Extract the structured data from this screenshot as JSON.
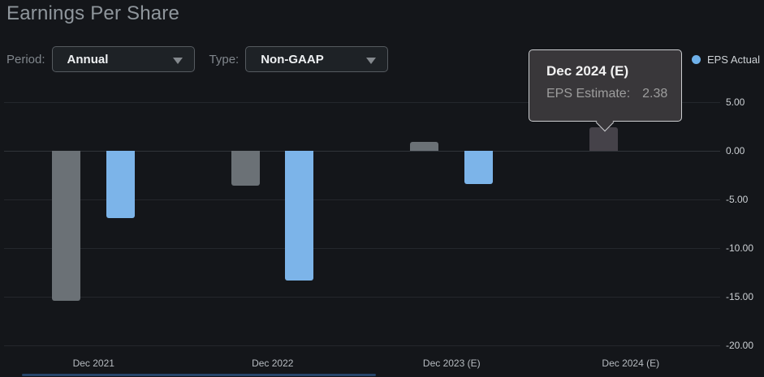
{
  "header": {
    "title": "Earnings Per Share"
  },
  "controls": {
    "period_label": "Period:",
    "period_value": "Annual",
    "type_label": "Type:",
    "type_value": "Non-GAAP"
  },
  "icons": {
    "dropdown_caret": "chevron-down",
    "legend_marker": "circle"
  },
  "legend": {
    "items": [
      {
        "label": "EPS Actual",
        "color": "#6fb1ea"
      }
    ]
  },
  "tooltip": {
    "title": "Dec 2024 (E)",
    "label": "EPS Estimate:",
    "value": "2.38"
  },
  "colors": {
    "background": "#14161a",
    "estimate_bar": "#6b7176",
    "actual_bar": "#7cb4e9",
    "highlighted_bar": "#454249",
    "tooltip_background": "#39373a",
    "tooltip_border": "#ccced1"
  },
  "chart_data": {
    "type": "bar",
    "title": "Earnings Per Share",
    "categories": [
      "Dec 2021",
      "Dec 2022",
      "Dec 2023 (E)",
      "Dec 2024 (E)"
    ],
    "series": [
      {
        "name": "EPS Estimate",
        "color": "#6b7176",
        "values": [
          -15.35,
          -3.55,
          0.9,
          2.38
        ]
      },
      {
        "name": "EPS Actual",
        "color": "#7cb4e9",
        "values": [
          -6.9,
          -13.3,
          -3.4,
          null
        ]
      }
    ],
    "ylim": [
      -20,
      5
    ],
    "yticks": [
      "5.00",
      "0.00",
      "-5.00",
      "-10.00",
      "-15.00",
      "-20.00"
    ],
    "grid": true,
    "legend_position": "top-right",
    "highlight": {
      "series_index": 0,
      "category_index": 3,
      "color": "#454249",
      "note": "hovered bar shown in tooltip"
    }
  }
}
